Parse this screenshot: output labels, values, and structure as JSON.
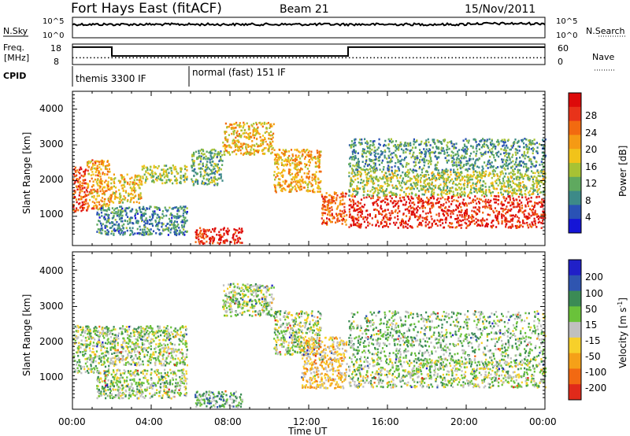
{
  "header": {
    "station": "Fort Hays East (fitACF)",
    "beam": "Beam 21",
    "date": "15/Nov/2011"
  },
  "params": {
    "nsky_label": "N.Sky",
    "nsearch_label": "N.Search",
    "freq_label_1": "Freq.",
    "freq_label_2": "[MHz]",
    "nave_label": "Nave",
    "cpid_label": "CPID",
    "nsky_ticks": [
      "10^5",
      "10^0"
    ],
    "nsearch_ticks": [
      "10^5",
      "10^0"
    ],
    "freq_ticks": [
      "18",
      "8"
    ],
    "nave_ticks": [
      "60",
      "0"
    ],
    "cpid_segments": [
      {
        "start": 0.0,
        "end": 6.0,
        "label": "themis 3300 IF"
      },
      {
        "start": 6.0,
        "end": 24.0,
        "label": "normal (fast) 151 IF"
      }
    ],
    "freq_steps": [
      {
        "start": 0.0,
        "end": 2.0,
        "mhz": 16.5
      },
      {
        "start": 2.0,
        "end": 14.0,
        "mhz": 12.2
      },
      {
        "start": 14.0,
        "end": 24.0,
        "mhz": 16.5
      }
    ],
    "nave_level": 0.33
  },
  "chart_data": [
    {
      "type": "heatmap",
      "name": "power",
      "ylabel": "Slant Range [km]",
      "xlim": [
        0,
        24
      ],
      "ylim": [
        180,
        4500
      ],
      "yticks": [
        "1000",
        "2000",
        "3000",
        "4000"
      ],
      "colorbar": {
        "label": "Power [dB]",
        "ticks": [
          "4",
          "8",
          "12",
          "16",
          "20",
          "24",
          "28"
        ],
        "colors": [
          "#1515d6",
          "#2a52b5",
          "#3d8a88",
          "#5fa95f",
          "#a7c234",
          "#f1c31a",
          "#f59a14",
          "#f26a10",
          "#e8331a",
          "#dd0a0a"
        ]
      },
      "blobs": [
        {
          "t0": 0.0,
          "t1": 0.7,
          "r0": 1150,
          "r1": 2400,
          "level": 0.82
        },
        {
          "t0": 0.7,
          "t1": 1.9,
          "r0": 1200,
          "r1": 2600,
          "level": 0.65
        },
        {
          "t0": 1.9,
          "t1": 3.5,
          "r0": 1400,
          "r1": 2200,
          "level": 0.55
        },
        {
          "t0": 3.5,
          "t1": 5.8,
          "r0": 1950,
          "r1": 2450,
          "level": 0.45
        },
        {
          "t0": 1.2,
          "t1": 5.8,
          "r0": 500,
          "r1": 1300,
          "level": 0.25
        },
        {
          "t0": 6.2,
          "t1": 8.6,
          "r0": 250,
          "r1": 700,
          "level": 0.9
        },
        {
          "t0": 6.0,
          "t1": 7.6,
          "r0": 1900,
          "r1": 2900,
          "level": 0.35
        },
        {
          "t0": 7.6,
          "t1": 10.2,
          "r0": 2750,
          "r1": 3650,
          "level": 0.58
        },
        {
          "t0": 10.2,
          "t1": 12.6,
          "r0": 1700,
          "r1": 2900,
          "level": 0.62
        },
        {
          "t0": 12.6,
          "t1": 13.9,
          "r0": 780,
          "r1": 1700,
          "level": 0.78
        },
        {
          "t0": 14.0,
          "t1": 24.0,
          "r0": 700,
          "r1": 1600,
          "level": 0.9
        },
        {
          "t0": 14.0,
          "t1": 24.0,
          "r0": 1600,
          "r1": 2300,
          "level": 0.45
        },
        {
          "t0": 14.0,
          "t1": 24.0,
          "r0": 2300,
          "r1": 3200,
          "level": 0.3
        }
      ]
    },
    {
      "type": "heatmap",
      "name": "velocity",
      "ylabel": "Slant Range [km]",
      "xlim": [
        0,
        24
      ],
      "ylim": [
        180,
        4500
      ],
      "yticks": [
        "1000",
        "2000",
        "3000",
        "4000"
      ],
      "xticks": [
        "00:00",
        "04:00",
        "08:00",
        "12:00",
        "16:00",
        "20:00",
        "00:00"
      ],
      "xlabel": "Time UT",
      "colorbar": {
        "label_main": "Velocity [m s",
        "label_sup": "-1",
        "label_end": "]",
        "ticks": [
          "200",
          "100",
          "50",
          "15",
          "-15",
          "-50",
          "-100",
          "-200"
        ],
        "colors": [
          "#2020c8",
          "#2f55b0",
          "#3b8b55",
          "#6ac23a",
          "#c0c0c0",
          "#f7d02a",
          "#f5a018",
          "#f26912",
          "#e02a1a"
        ]
      },
      "blobs": [
        {
          "t0": 0.0,
          "t1": 1.9,
          "r0": 1200,
          "r1": 2500,
          "level": 0.45
        },
        {
          "t0": 1.9,
          "t1": 5.8,
          "r0": 1400,
          "r1": 2500,
          "level": 0.45
        },
        {
          "t0": 1.2,
          "t1": 5.8,
          "r0": 500,
          "r1": 1300,
          "level": 0.45
        },
        {
          "t0": 6.2,
          "t1": 8.6,
          "r0": 250,
          "r1": 700,
          "level": 0.35
        },
        {
          "t0": 7.6,
          "t1": 10.2,
          "r0": 2750,
          "r1": 3650,
          "level": 0.45
        },
        {
          "t0": 10.2,
          "t1": 12.6,
          "r0": 1700,
          "r1": 2900,
          "level": 0.45
        },
        {
          "t0": 11.6,
          "t1": 13.9,
          "r0": 780,
          "r1": 2200,
          "level": 0.62
        },
        {
          "t0": 14.0,
          "t1": 24.0,
          "r0": 800,
          "r1": 1600,
          "level": 0.45
        },
        {
          "t0": 14.0,
          "t1": 24.0,
          "r0": 1600,
          "r1": 2900,
          "level": 0.4
        }
      ]
    }
  ]
}
